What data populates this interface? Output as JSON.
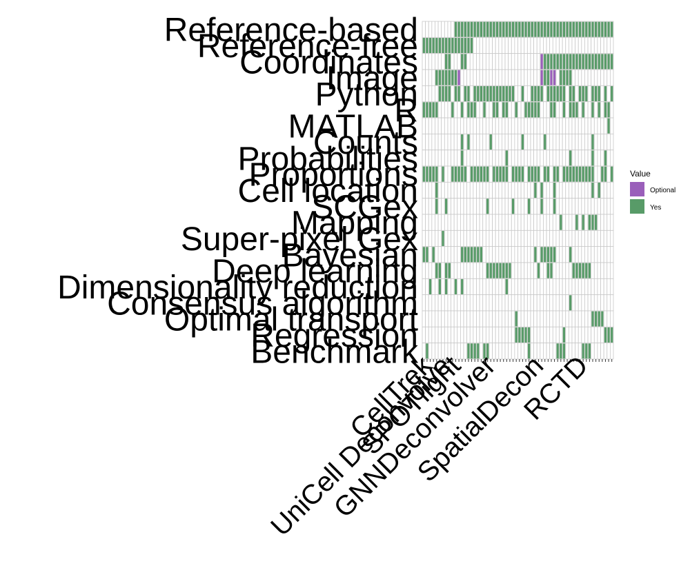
{
  "chart_data": {
    "type": "heatmap",
    "rows": [
      "Reference-based",
      "Reference-free",
      "Coordinates",
      "Image",
      "Python",
      "R",
      "MATLAB",
      "Counts",
      "Probabilities",
      "Proportions",
      "Cell location",
      "SCGex",
      "Mapping",
      "Super-pixel Gex",
      "Bayesian",
      "Deep learning",
      "Dimensionality reduction",
      "Consensus algorithm",
      "Optimal transport",
      "Regression",
      "Benchmark"
    ],
    "num_columns": 60,
    "visible_column_labels": [
      "CellTrek",
      "UniCell Deconvolve",
      "SPOTlight",
      "GNNDeconvolver",
      "SpatialDecon",
      "RCTD"
    ],
    "legend": {
      "title": "Value",
      "position": "right",
      "entries": [
        {
          "label": "Optional",
          "color": "#9a5fba"
        },
        {
          "label": "Yes",
          "color": "#589b68"
        }
      ]
    },
    "cells": {
      "Reference-based": {
        "Yes": [
          10,
          11,
          12,
          13,
          14,
          15,
          16,
          17,
          18,
          19,
          20,
          21,
          22,
          23,
          24,
          25,
          26,
          27,
          28,
          29,
          30,
          31,
          32,
          33,
          34,
          35,
          36,
          37,
          38,
          39,
          40,
          41,
          42,
          43,
          44,
          45,
          46,
          47,
          48,
          49,
          50,
          51,
          52,
          53,
          54,
          55,
          56,
          57,
          58,
          59
        ]
      },
      "Reference-free": {
        "Yes": [
          0,
          1,
          2,
          3,
          4,
          5,
          6,
          7,
          8,
          9,
          10,
          11,
          12,
          13,
          14,
          15
        ]
      },
      "Coordinates": {
        "Yes": [
          7,
          8,
          12,
          13,
          38,
          39,
          40,
          41,
          42,
          43,
          44,
          45,
          46,
          47,
          48,
          49,
          50,
          51,
          52,
          53,
          54,
          55,
          56,
          57,
          58,
          59
        ],
        "Optional": [
          37
        ]
      },
      "Image": {
        "Yes": [
          4,
          5,
          6,
          7,
          8,
          9,
          10,
          38,
          39,
          43,
          44,
          45,
          46
        ],
        "Optional": [
          11,
          37,
          40,
          41
        ]
      },
      "Python": {
        "Yes": [
          5,
          6,
          7,
          8,
          10,
          11,
          13,
          14,
          16,
          17,
          18,
          19,
          20,
          21,
          22,
          23,
          24,
          25,
          26,
          27,
          28,
          31,
          34,
          35,
          36,
          37,
          39,
          40,
          41,
          42,
          43,
          44,
          46,
          47,
          49,
          50,
          51,
          53,
          54,
          55,
          57,
          59
        ]
      },
      "R": {
        "Yes": [
          0,
          1,
          2,
          3,
          4,
          9,
          12,
          14,
          15,
          16,
          19,
          22,
          23,
          25,
          26,
          29,
          32,
          33,
          34,
          35,
          36,
          40,
          41,
          44,
          46,
          47,
          48,
          50,
          53,
          55,
          57,
          58
        ]
      },
      "MATLAB": {
        "Yes": [
          58
        ]
      },
      "Counts": {
        "Yes": [
          12,
          14,
          21,
          31,
          38,
          53
        ]
      },
      "Probabilities": {
        "Yes": [
          12,
          26,
          46,
          53,
          57
        ]
      },
      "Proportions": {
        "Yes": [
          0,
          1,
          2,
          3,
          4,
          6,
          9,
          10,
          11,
          12,
          13,
          15,
          16,
          17,
          18,
          19,
          20,
          22,
          23,
          24,
          25,
          26,
          28,
          29,
          30,
          31,
          33,
          34,
          35,
          36,
          38,
          39,
          41,
          42,
          44,
          45,
          46,
          47,
          48,
          49,
          50,
          51,
          52,
          53,
          56,
          57,
          59
        ]
      },
      "Cell location": {
        "Yes": [
          4,
          35,
          37,
          41,
          53,
          55
        ]
      },
      "SCGex": {
        "Yes": [
          4,
          7,
          20,
          28,
          33,
          37,
          41
        ]
      },
      "Mapping": {
        "Yes": [
          43,
          48,
          50,
          52,
          53,
          54
        ]
      },
      "Super-pixel Gex": {
        "Yes": [
          6
        ]
      },
      "Bayesian": {
        "Yes": [
          0,
          1,
          3,
          12,
          13,
          14,
          15,
          16,
          17,
          18,
          35,
          37,
          38,
          39,
          40,
          41,
          46
        ]
      },
      "Deep learning": {
        "Yes": [
          4,
          5,
          7,
          8,
          20,
          21,
          22,
          23,
          24,
          25,
          26,
          27,
          36,
          39,
          40,
          47,
          48,
          49,
          50,
          51,
          52
        ]
      },
      "Dimensionality reduction": {
        "Yes": [
          2,
          5,
          7,
          10,
          12,
          26
        ]
      },
      "Consensus algorithm": {
        "Yes": [
          46
        ]
      },
      "Optimal transport": {
        "Yes": [
          29,
          53,
          54,
          55,
          56
        ]
      },
      "Regression": {
        "Yes": [
          29,
          30,
          31,
          32,
          33,
          44,
          57,
          58,
          59
        ]
      },
      "Benchmark": {
        "Yes": [
          1,
          14,
          15,
          16,
          17,
          19,
          20,
          33,
          42,
          43,
          44,
          50,
          51,
          52
        ]
      }
    }
  }
}
